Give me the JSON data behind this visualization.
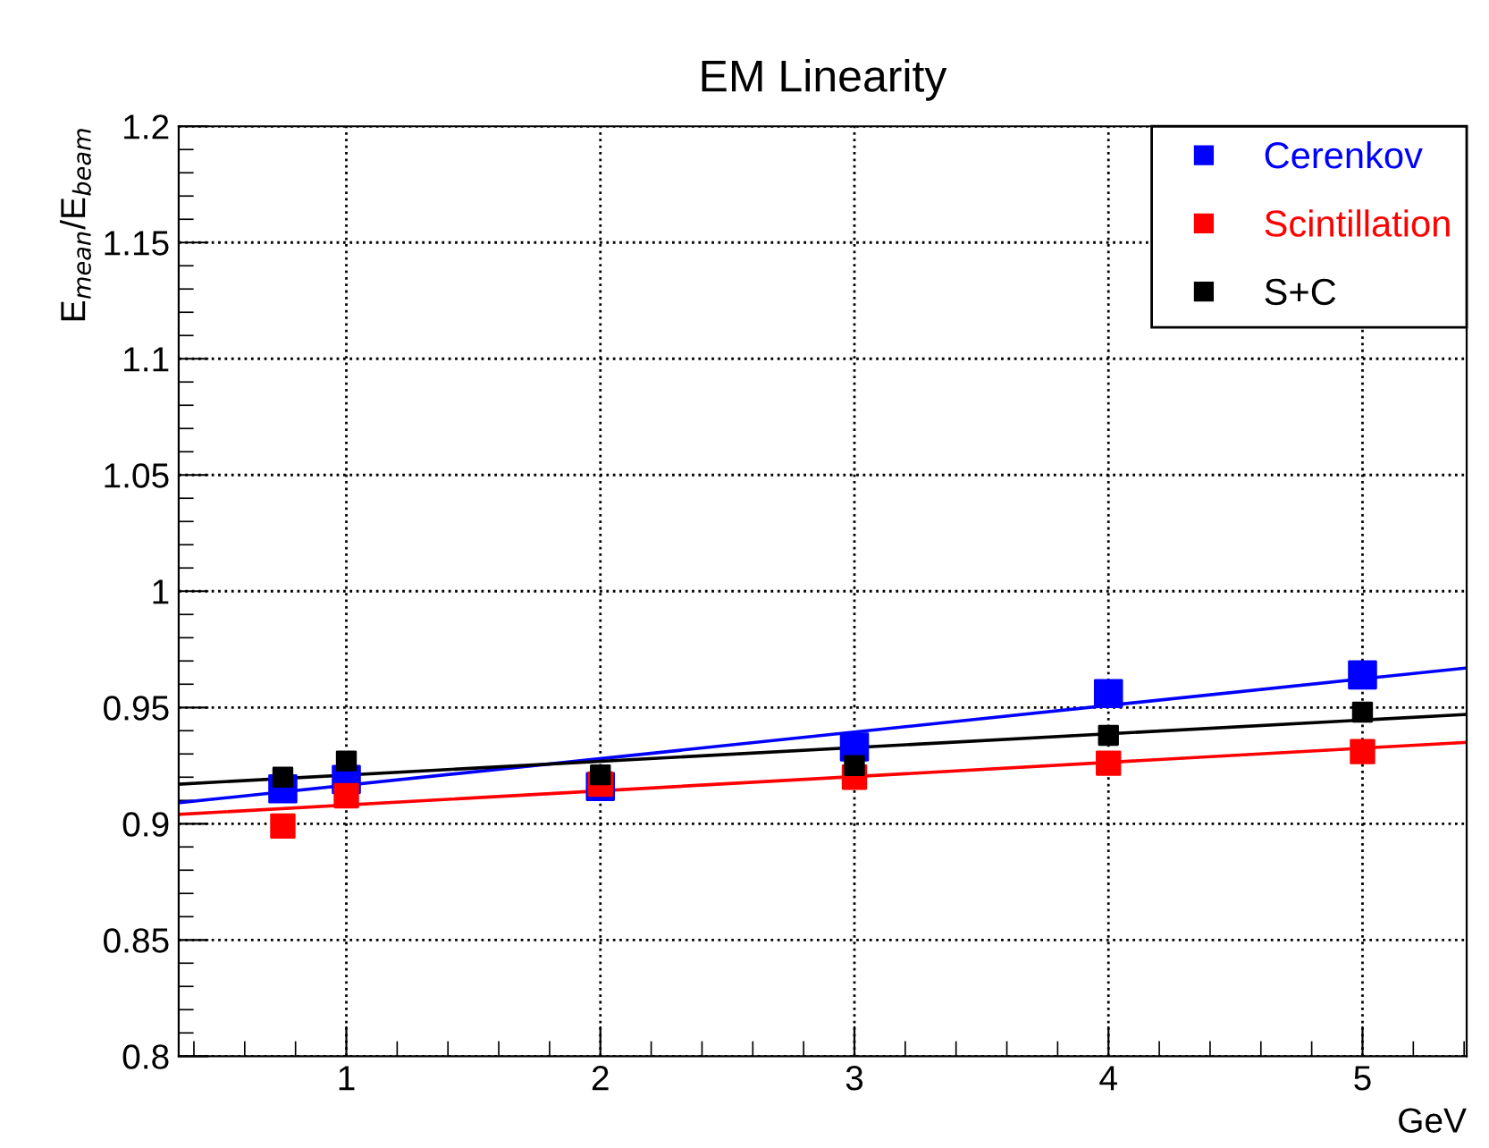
{
  "chart_data": {
    "type": "scatter",
    "title": "EM Linearity",
    "xlabel": "GeV",
    "ylabel": "E$_{mean}$/E$_{beam}$",
    "series": [
      {
        "name": "Cerenkov",
        "color": "#0000ff",
        "x": [
          0.75,
          1,
          2,
          3,
          4,
          5
        ],
        "values": [
          0.915,
          0.919,
          0.916,
          0.933,
          0.956,
          0.964
        ]
      },
      {
        "name": "Scintillation",
        "color": "#ff0000",
        "x": [
          0.75,
          1,
          2,
          3,
          4,
          5
        ],
        "values": [
          0.899,
          0.912,
          0.917,
          0.92,
          0.926,
          0.931
        ]
      },
      {
        "name": "S+C",
        "color": "#000000",
        "x": [
          0.75,
          1,
          2,
          3,
          4,
          5
        ],
        "values": [
          0.92,
          0.927,
          0.921,
          0.925,
          0.938,
          0.948
        ]
      },
      {
        "type": "line",
        "marker": "none",
        "color": "#0000ff",
        "x": [
          0.34,
          5.41
        ],
        "values": [
          0.909,
          0.967
        ]
      },
      {
        "type": "line",
        "marker": "none",
        "color": "#ff0000",
        "x": [
          0.34,
          5.41
        ],
        "values": [
          0.904,
          0.935
        ]
      },
      {
        "type": "line",
        "marker": "none",
        "color": "#000000",
        "x": [
          0.34,
          5.41
        ],
        "values": [
          0.917,
          0.947
        ]
      }
    ],
    "marker": "square",
    "line_style": "solid",
    "grid": true,
    "legend": "top right",
    "xlim": [
      0.34,
      5.41
    ],
    "xticks": [
      1,
      2,
      3,
      4,
      5
    ],
    "ylim": [
      0.8,
      1.2
    ],
    "yticks": [
      0.8,
      0.85,
      0.9,
      0.95,
      1,
      1.05,
      1.1,
      1.15,
      1.2
    ]
  }
}
